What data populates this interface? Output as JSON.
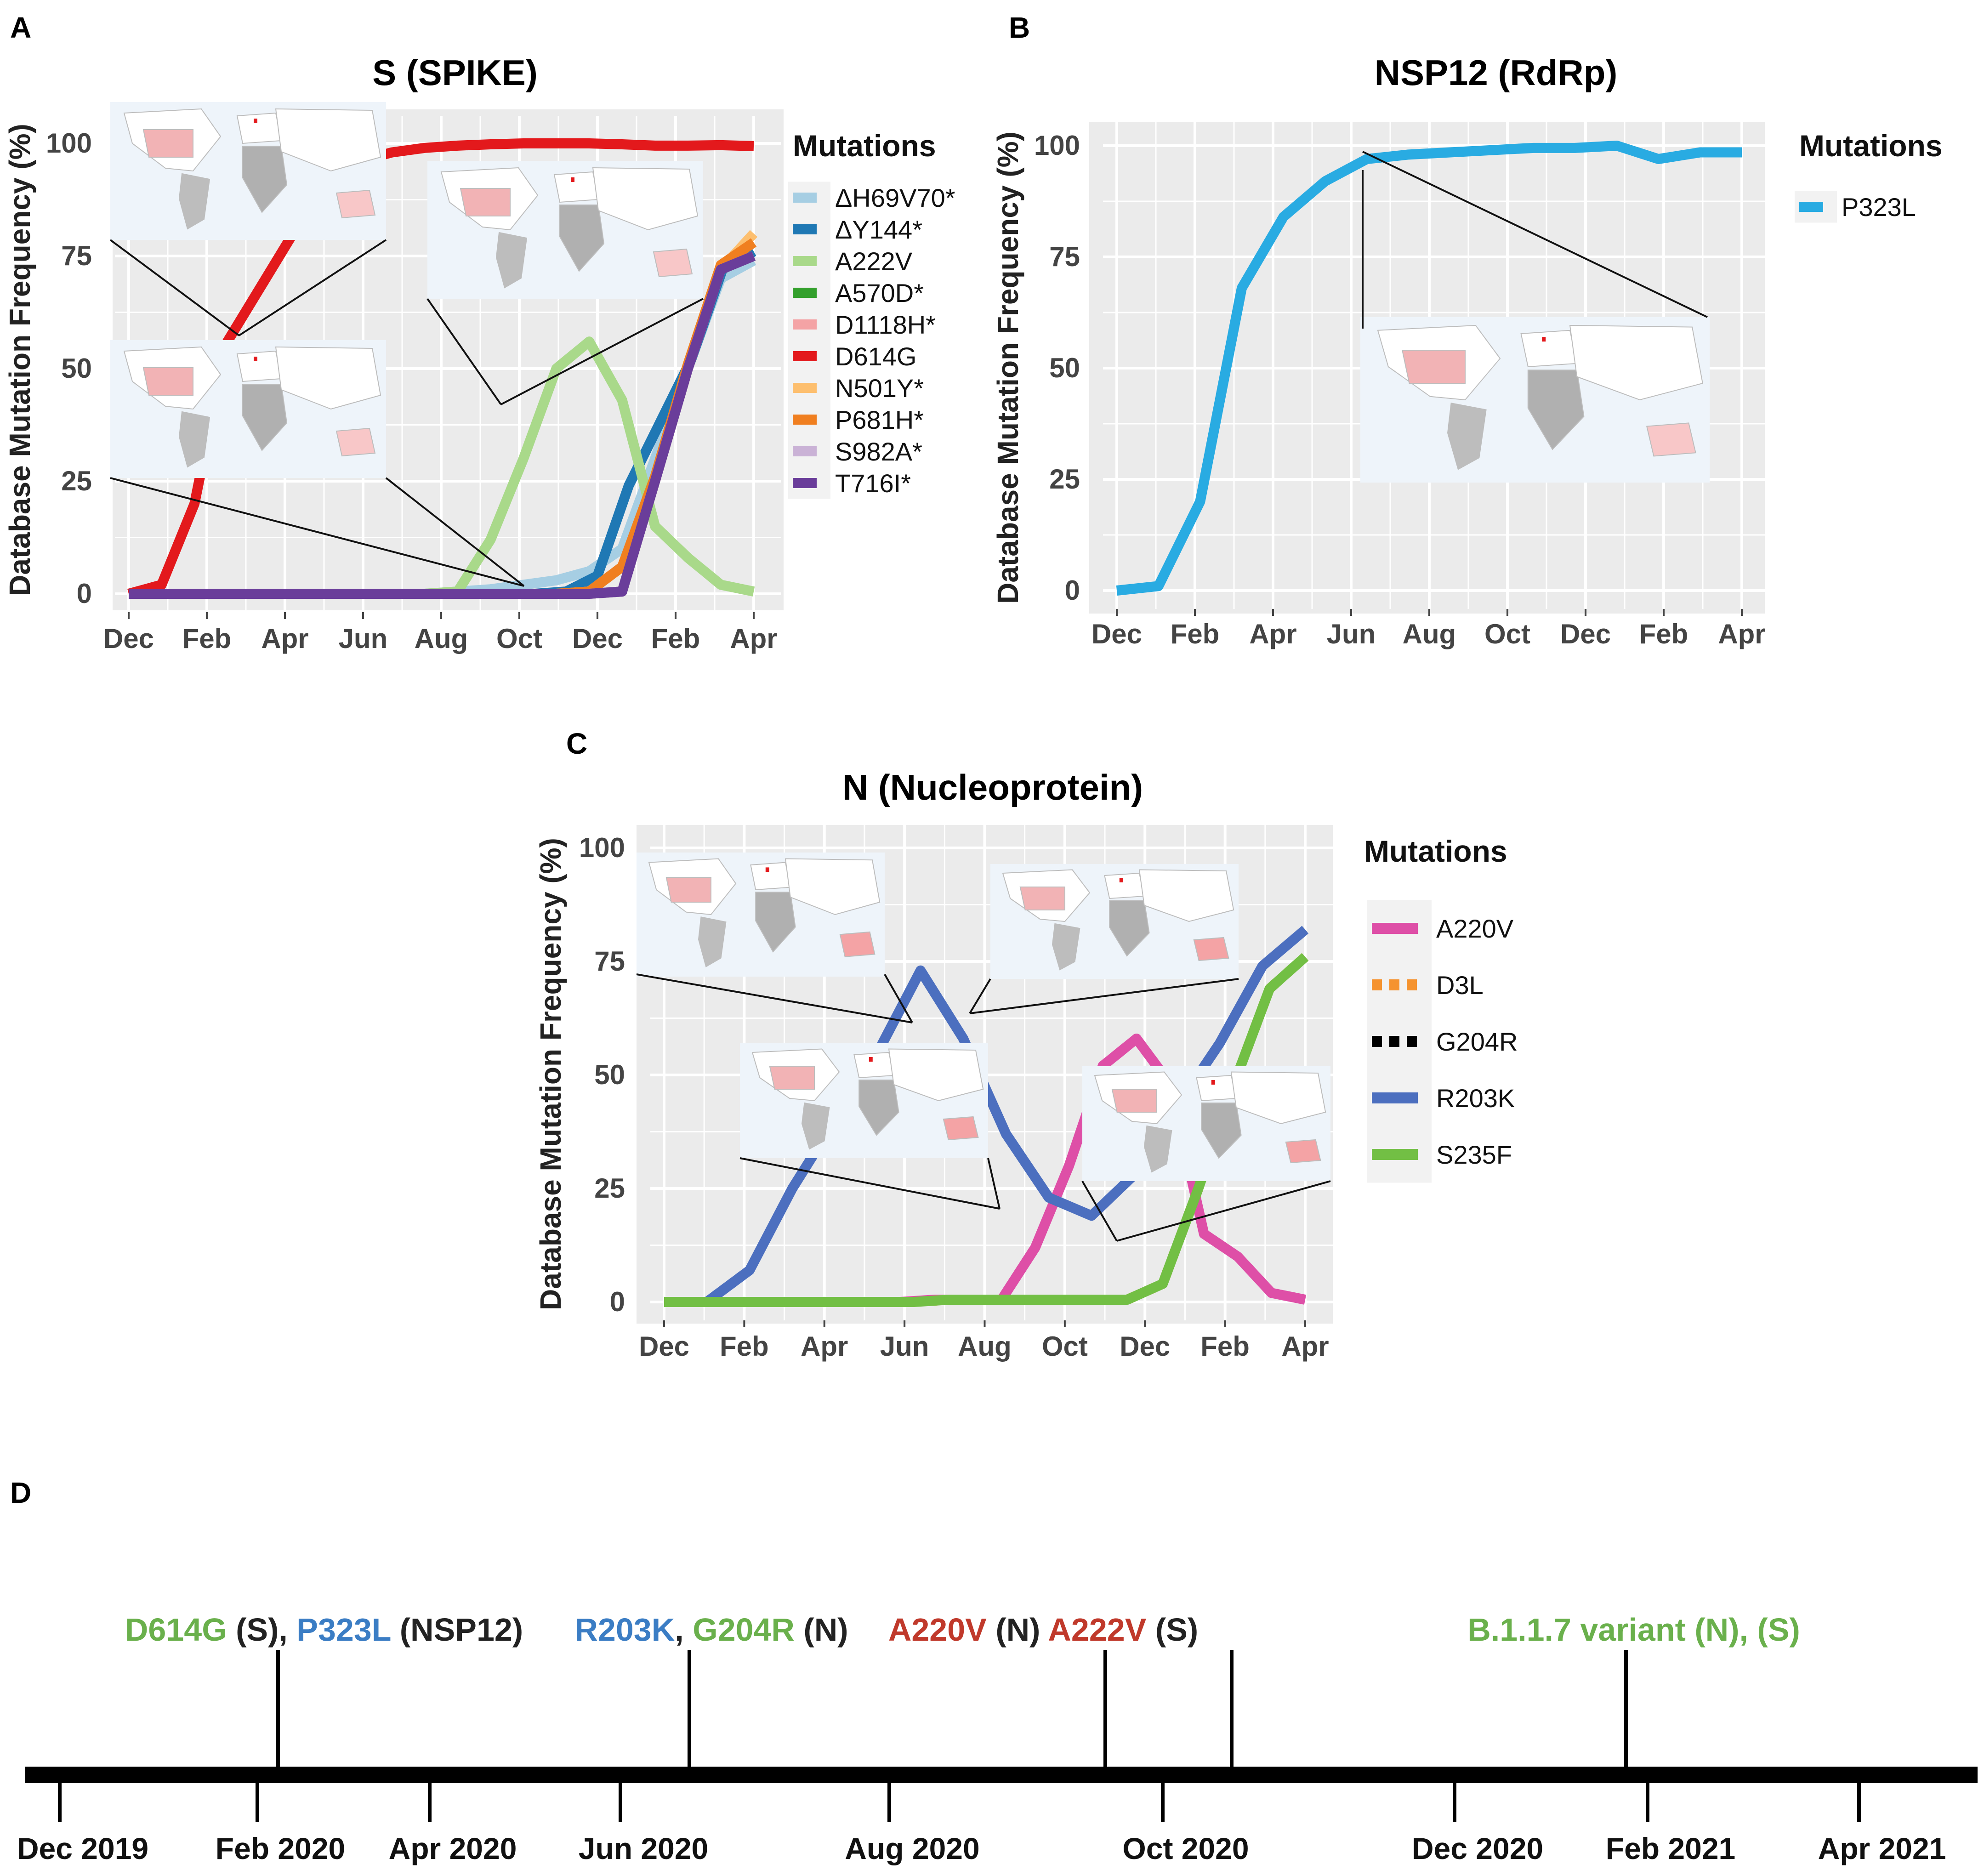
{
  "panels": {
    "A": "A",
    "B": "B",
    "C": "C",
    "D": "D"
  },
  "chart_data": [
    {
      "id": "A",
      "type": "line",
      "title": "S (SPIKE)",
      "xlabel": "",
      "ylabel": "Database Mutation Frequency (%)",
      "ylim": [
        0,
        105
      ],
      "grid": true,
      "x_ticks": [
        "Dec",
        "Feb",
        "Apr",
        "Jun",
        "Aug",
        "Oct",
        "Dec",
        "Feb",
        "Apr"
      ],
      "y_ticks": [
        "0",
        "25",
        "50",
        "75",
        "100"
      ],
      "legend_title": "Mutations",
      "legend_position": "right",
      "series": [
        {
          "name": "ΔH69V70*",
          "color": "#a6cee3",
          "values": [
            0,
            0,
            0,
            0,
            0,
            0,
            0,
            0,
            0,
            0,
            0.5,
            1,
            2,
            3,
            5,
            10,
            30,
            50,
            70,
            74
          ]
        },
        {
          "name": "ΔY144*",
          "color": "#1f78b4",
          "values": [
            0,
            0,
            0,
            0,
            0,
            0,
            0,
            0,
            0,
            0,
            0,
            0,
            0,
            0,
            0.5,
            4,
            24,
            38,
            52,
            72,
            76
          ]
        },
        {
          "name": "A222V",
          "color": "#a9d98a",
          "values": [
            0,
            0,
            0,
            0,
            0,
            0,
            0,
            0,
            0,
            0,
            0.5,
            12,
            30,
            50,
            56,
            43,
            15,
            8,
            2,
            0.5
          ]
        },
        {
          "name": "A570D*",
          "color": "#33a02c",
          "values": [
            0,
            0,
            0,
            0,
            0,
            0,
            0,
            0,
            0,
            0,
            0,
            0,
            0,
            0,
            0,
            0.5,
            25,
            50,
            72,
            75
          ]
        },
        {
          "name": "D1118H*",
          "color": "#f4a3a5",
          "values": [
            0,
            0,
            0,
            0,
            0,
            0,
            0,
            0,
            0,
            0,
            0,
            0,
            0,
            0,
            0,
            0.5,
            25,
            50,
            72,
            75
          ]
        },
        {
          "name": "D614G",
          "color": "#e3191c",
          "values": [
            0,
            2,
            20,
            56,
            68,
            80,
            90,
            96,
            98,
            99,
            99.5,
            99.8,
            100,
            100,
            100,
            99.8,
            99.5,
            99.5,
            99.6,
            99.4
          ]
        },
        {
          "name": "N501Y*",
          "color": "#fdbf6f",
          "values": [
            0,
            0,
            0,
            0,
            0,
            0,
            0,
            0,
            0,
            0,
            0,
            0,
            0,
            0,
            0.5,
            6,
            25,
            50,
            72,
            80
          ]
        },
        {
          "name": "P681H*",
          "color": "#f07f20",
          "values": [
            0,
            0,
            0,
            0,
            0,
            0,
            0,
            0,
            0,
            0,
            0,
            0,
            0,
            0,
            0.5,
            6,
            26,
            51,
            73,
            78
          ]
        },
        {
          "name": "S982A*",
          "color": "#cab2d6",
          "values": [
            0,
            0,
            0,
            0,
            0,
            0,
            0,
            0,
            0,
            0,
            0,
            0,
            0,
            0,
            0,
            0.5,
            25,
            50,
            72,
            75
          ]
        },
        {
          "name": "T716I*",
          "color": "#6a3d9a",
          "values": [
            0,
            0,
            0,
            0,
            0,
            0,
            0,
            0,
            0,
            0,
            0,
            0,
            0,
            0,
            0,
            0.5,
            25,
            50,
            72,
            75
          ]
        }
      ]
    },
    {
      "id": "B",
      "type": "line",
      "title": "NSP12 (RdRp)",
      "xlabel": "",
      "ylabel": "Database Mutation Frequency (%)",
      "ylim": [
        0,
        105
      ],
      "grid": true,
      "x_ticks": [
        "Dec",
        "Feb",
        "Apr",
        "Jun",
        "Aug",
        "Oct",
        "Dec",
        "Feb",
        "Apr"
      ],
      "y_ticks": [
        "0",
        "25",
        "50",
        "75",
        "100"
      ],
      "legend_title": "Mutations",
      "legend_position": "right",
      "series": [
        {
          "name": "P323L",
          "color": "#29abe2",
          "values": [
            0,
            1,
            20,
            68,
            84,
            92,
            97,
            98,
            98.5,
            99,
            99.5,
            99.5,
            100,
            97,
            98.5,
            98.5
          ]
        }
      ]
    },
    {
      "id": "C",
      "type": "line",
      "title": "N (Nucleoprotein)",
      "xlabel": "",
      "ylabel": "Database Mutation Frequency (%)",
      "ylim": [
        0,
        105
      ],
      "grid": true,
      "x_ticks": [
        "Dec",
        "Feb",
        "Apr",
        "Jun",
        "Aug",
        "Oct",
        "Dec",
        "Feb",
        "Apr"
      ],
      "y_ticks": [
        "0",
        "25",
        "50",
        "75",
        "100"
      ],
      "legend_title": "Mutations",
      "legend_position": "right",
      "series": [
        {
          "name": "A220V",
          "color": "#de4fa7",
          "style": "solid",
          "values": [
            0,
            0,
            0,
            0,
            0,
            0,
            0,
            0,
            0.5,
            0.5,
            0.5,
            12,
            30,
            52,
            58,
            48,
            15,
            10,
            2,
            0.5
          ]
        },
        {
          "name": "D3L",
          "color": "#f5932f",
          "style": "dashed",
          "values": [
            0,
            0,
            0,
            0,
            0,
            0,
            0,
            0,
            0.5,
            0.5,
            0.5,
            0.5,
            0.5,
            0.5,
            4,
            25,
            48,
            69,
            76
          ]
        },
        {
          "name": "G204R",
          "color": "#000000",
          "style": "dashed",
          "values": [
            0,
            0,
            7,
            25,
            40,
            55,
            73,
            58,
            37,
            23,
            19,
            28,
            43,
            57,
            74,
            82
          ]
        },
        {
          "name": "R203K",
          "color": "#4c6fbf",
          "style": "solid",
          "values": [
            0,
            0,
            7,
            25,
            40,
            55,
            73,
            58,
            37,
            23,
            19,
            28,
            43,
            57,
            74,
            82
          ]
        },
        {
          "name": "S235F",
          "color": "#72bf44",
          "style": "solid",
          "values": [
            0,
            0,
            0,
            0,
            0,
            0,
            0,
            0,
            0.5,
            0.5,
            0.5,
            0.5,
            0.5,
            0.5,
            4,
            25,
            48,
            69,
            76
          ]
        }
      ]
    },
    {
      "id": "D",
      "type": "timeline",
      "dates": [
        "Dec 2019",
        "Feb 2020",
        "Apr 2020",
        "Jun 2020",
        "Aug 2020",
        "Oct 2020",
        "Dec 2020",
        "Feb 2021",
        "Apr 2021"
      ],
      "events": [
        {
          "at": 2.1,
          "parts": [
            {
              "text": "D614G",
              "color": "#6ab04c"
            },
            {
              "text": " (S), ",
              "color": "#222222"
            },
            {
              "text": "P323L",
              "color": "#3b7dc4"
            },
            {
              "text": " (NSP12)",
              "color": "#222222"
            }
          ]
        },
        {
          "at": 6.4,
          "parts": [
            {
              "text": "R203K",
              "color": "#3b7dc4"
            },
            {
              "text": ", ",
              "color": "#222222"
            },
            {
              "text": "G204R",
              "color": "#6ab04c"
            },
            {
              "text": " (N)",
              "color": "#222222"
            }
          ]
        },
        {
          "at": 9.8,
          "parts": [
            {
              "text": "A220V",
              "color": "#c0392b"
            },
            {
              "text": " (N) ",
              "color": "#222222"
            },
            {
              "text": "A222V",
              "color": "#c0392b"
            },
            {
              "text": " (S)",
              "color": "#222222"
            }
          ]
        },
        {
          "at": 10.4,
          "parts": []
        },
        {
          "at": 14.0,
          "parts": [
            {
              "text": "B.1.1.7 variant (N), (S)",
              "color": "#6ab04c"
            }
          ]
        }
      ]
    }
  ]
}
